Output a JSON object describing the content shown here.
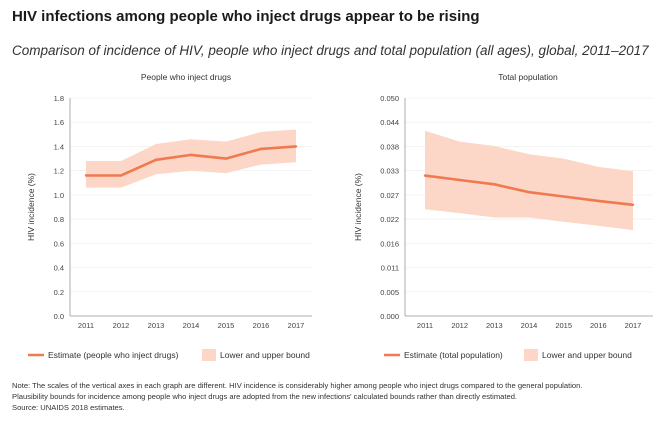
{
  "title": "HIV infections among people who inject drugs appear to be rising",
  "subtitle": "Comparison of incidence of HIV, people who inject drugs and total population (all ages), global, 2011–2017",
  "colors": {
    "line": "#f07a50",
    "band": "#fcd6c6",
    "axis": "#999999",
    "text": "#333333"
  },
  "chart_data": [
    {
      "type": "line",
      "title": "People who inject drugs",
      "xlabel": "",
      "ylabel": "HIV incidence (%)",
      "x": [
        "2011",
        "2012",
        "2013",
        "2014",
        "2015",
        "2016",
        "2017"
      ],
      "ylim": [
        0,
        1.8
      ],
      "yticks": [
        "0.0",
        "0.2",
        "0.4",
        "0.6",
        "0.8",
        "1.0",
        "1.2",
        "1.4",
        "1.6",
        "1.8"
      ],
      "series": [
        {
          "name": "Estimate (people who inject drugs)",
          "values": [
            1.16,
            1.16,
            1.29,
            1.33,
            1.3,
            1.38,
            1.4
          ]
        }
      ],
      "bounds": {
        "name": "Lower and upper bound",
        "lower": [
          1.06,
          1.06,
          1.17,
          1.2,
          1.18,
          1.25,
          1.27
        ],
        "upper": [
          1.28,
          1.28,
          1.42,
          1.46,
          1.44,
          1.52,
          1.54
        ]
      },
      "legend": {
        "estimate_label": "Estimate (people who inject drugs)",
        "bound_label": "Lower and upper bound"
      }
    },
    {
      "type": "line",
      "title": "Total population",
      "xlabel": "",
      "ylabel": "HIV incidence (%)",
      "x": [
        "2011",
        "2012",
        "2013",
        "2014",
        "2015",
        "2016",
        "2017"
      ],
      "ylim": [
        0,
        0.05
      ],
      "yticks": [
        "0.000",
        "0.005",
        "0.011",
        "0.016",
        "0.022",
        "0.027",
        "0.033",
        "0.038",
        "0.044",
        "0.050"
      ],
      "series": [
        {
          "name": "Estimate (total population)",
          "values": [
            0.0322,
            0.0312,
            0.0302,
            0.0284,
            0.0274,
            0.0264,
            0.0255
          ]
        }
      ],
      "bounds": {
        "name": "Lower and upper bound",
        "lower": [
          0.0245,
          0.0236,
          0.0226,
          0.0226,
          0.0216,
          0.0207,
          0.0197
        ],
        "upper": [
          0.0425,
          0.04,
          0.039,
          0.0371,
          0.0361,
          0.0342,
          0.0332
        ]
      },
      "legend": {
        "estimate_label": "Estimate (total population)",
        "bound_label": "Lower and upper bound"
      }
    }
  ],
  "notes": {
    "line1": "Note: The scales of the vertical axes in each graph are different. HIV incidence is considerably higher among people who inject drugs compared to the general population.",
    "line2": "Plausibility bounds for incidence among people who inject drugs are adopted from the new infections' calculated bounds rather than directly estimated.",
    "source": "Source: UNAIDS 2018 estimates."
  }
}
